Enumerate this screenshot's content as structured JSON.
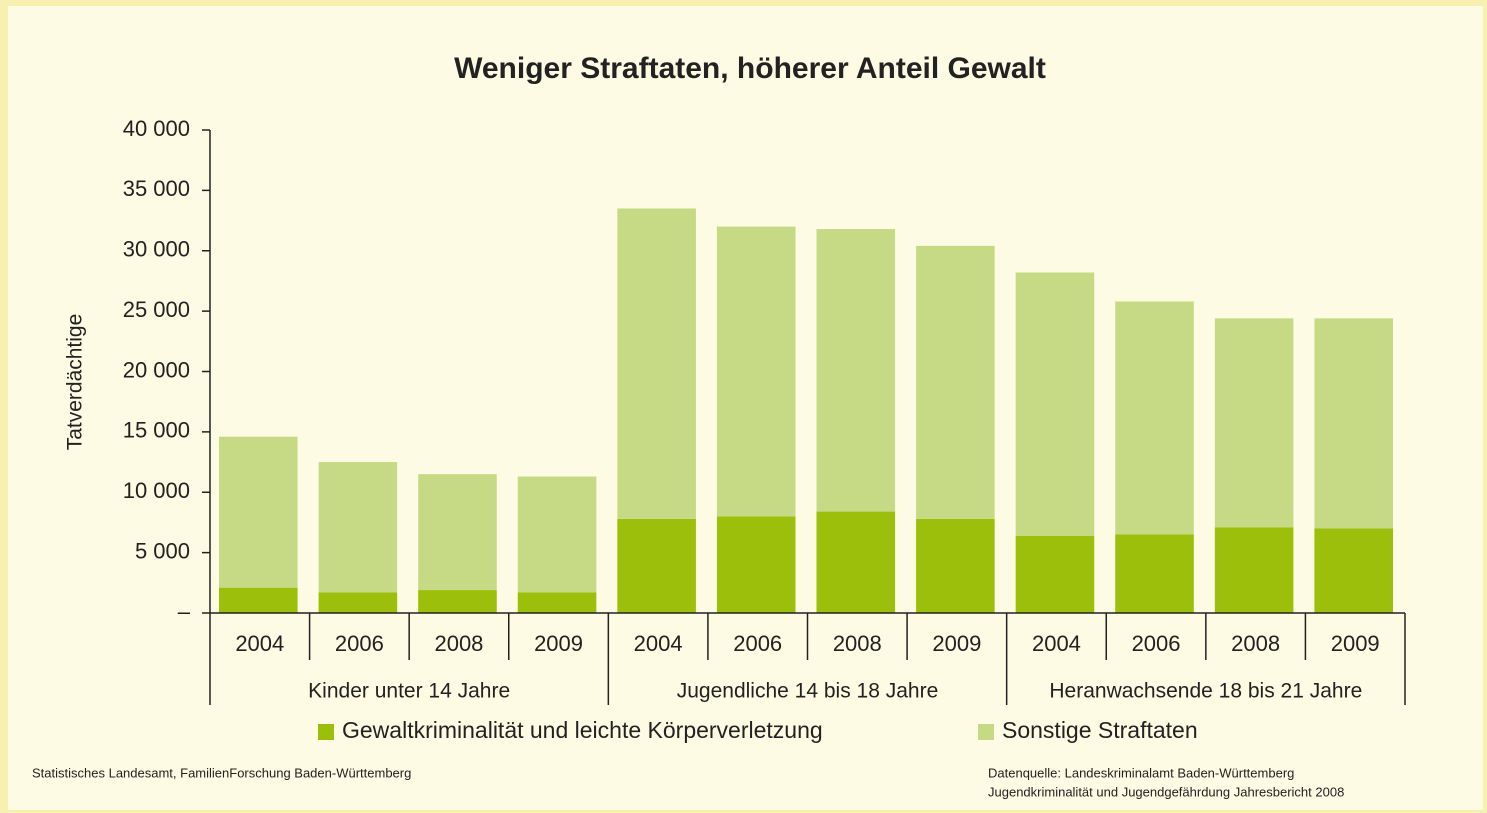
{
  "chart_data": {
    "type": "stacked_bar",
    "title": "Weniger Straftaten, höherer Anteil Gewalt",
    "y_label": "Tatverdächtige",
    "groups": [
      {
        "name": "Kinder unter 14 Jahre",
        "categories": [
          "2004",
          "2006",
          "2008",
          "2009"
        ]
      },
      {
        "name": "Jugendliche 14 bis 18 Jahre",
        "categories": [
          "2004",
          "2006",
          "2008",
          "2009"
        ]
      },
      {
        "name": "Heranwachsende 18 bis 21 Jahre",
        "categories": [
          "2004",
          "2006",
          "2008",
          "2009"
        ]
      }
    ],
    "series": [
      {
        "name": "Gewaltkriminalität und leichte Körperverletzung",
        "color": "#9bbf0a",
        "values": [
          2100,
          1700,
          1900,
          1700,
          7800,
          8000,
          8400,
          7800,
          6400,
          6500,
          7100,
          7000
        ]
      },
      {
        "name": "Sonstige Straftaten",
        "color": "#c6da86",
        "values": [
          12500,
          10800,
          9600,
          9600,
          25700,
          24000,
          23400,
          22600,
          21800,
          19300,
          17300,
          17400
        ]
      }
    ],
    "ylim": [
      0,
      40000
    ],
    "yticks": [
      {
        "value": 0,
        "label": "–"
      },
      {
        "value": 5000,
        "label": "5 000"
      },
      {
        "value": 10000,
        "label": "10 000"
      },
      {
        "value": 15000,
        "label": "15 000"
      },
      {
        "value": 20000,
        "label": "20 000"
      },
      {
        "value": 25000,
        "label": "25 000"
      },
      {
        "value": 30000,
        "label": "30 000"
      },
      {
        "value": 35000,
        "label": "35 000"
      },
      {
        "value": 40000,
        "label": "40 000"
      }
    ],
    "source_left": "Statistisches Landesamt, FamilienForschung Baden-Württemberg",
    "source_right": [
      "Datenquelle: Landeskriminalamt Baden-Württemberg",
      "Jugendkriminalität und Jugendgefährdung Jahresbericht 2008"
    ]
  }
}
